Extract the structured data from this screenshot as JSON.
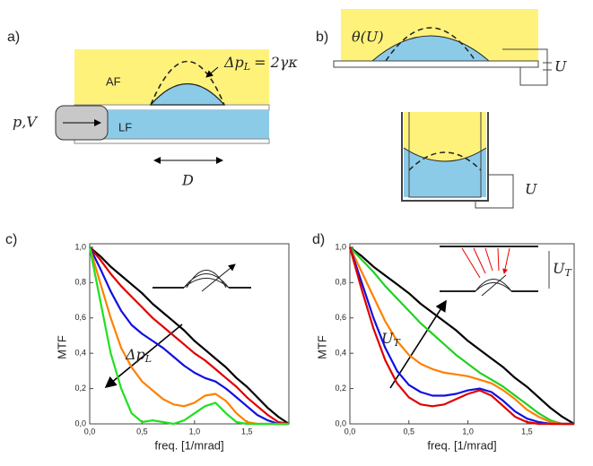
{
  "diagrams": {
    "a": {
      "label": "a)",
      "af": "AF",
      "lf": "LF",
      "pv": "p,V",
      "dp": "Δp",
      "dp_sub": "L",
      "dp_eq": "= 2γκ",
      "d": "D"
    },
    "b": {
      "label": "b)",
      "theta": "θ(U)",
      "u1": "U",
      "u2": "U"
    }
  },
  "chart_data": [
    {
      "type": "line",
      "panel": "c)",
      "xlabel": "freq. [1/mrad]",
      "ylabel": "MTF",
      "annotation": "Δp",
      "annotation_sub": "L",
      "x": [
        0,
        0.1,
        0.2,
        0.3,
        0.4,
        0.5,
        0.6,
        0.7,
        0.8,
        0.9,
        1.0,
        1.1,
        1.2,
        1.3,
        1.4,
        1.5,
        1.6,
        1.7,
        1.8,
        1.9
      ],
      "xlim": [
        0,
        1.9
      ],
      "ylim": [
        0,
        1.02
      ],
      "xticks": [
        {
          "value": 0,
          "label": "0,0"
        },
        {
          "value": 0.5,
          "label": "0,5"
        },
        {
          "value": 1,
          "label": "1,0"
        },
        {
          "value": 1.5,
          "label": "1,5"
        }
      ],
      "yticks": [
        {
          "value": 0,
          "label": "0,0"
        },
        {
          "value": 0.2,
          "label": "0,2"
        },
        {
          "value": 0.4,
          "label": "0,4"
        },
        {
          "value": 0.6,
          "label": "0,6"
        },
        {
          "value": 0.8,
          "label": "0,8"
        },
        {
          "value": 1,
          "label": "1,0"
        }
      ],
      "series": [
        {
          "color": "#000000",
          "values": [
            1,
            0.95,
            0.89,
            0.84,
            0.79,
            0.74,
            0.68,
            0.63,
            0.58,
            0.53,
            0.47,
            0.42,
            0.37,
            0.32,
            0.26,
            0.21,
            0.15,
            0.09,
            0.04,
            0
          ]
        },
        {
          "color": "#e00000",
          "values": [
            1,
            0.93,
            0.85,
            0.78,
            0.72,
            0.66,
            0.6,
            0.55,
            0.5,
            0.45,
            0.4,
            0.36,
            0.31,
            0.26,
            0.21,
            0.15,
            0.1,
            0.05,
            0.01,
            0
          ]
        },
        {
          "color": "#1010e0",
          "values": [
            1,
            0.88,
            0.75,
            0.64,
            0.56,
            0.51,
            0.47,
            0.43,
            0.38,
            0.33,
            0.29,
            0.26,
            0.24,
            0.2,
            0.15,
            0.1,
            0.05,
            0.02,
            0,
            0
          ]
        },
        {
          "color": "#ff8000",
          "values": [
            1,
            0.8,
            0.6,
            0.43,
            0.32,
            0.24,
            0.19,
            0.14,
            0.11,
            0.1,
            0.12,
            0.16,
            0.17,
            0.13,
            0.06,
            0.01,
            0,
            0,
            0,
            0
          ]
        },
        {
          "color": "#20e020",
          "values": [
            1,
            0.7,
            0.4,
            0.2,
            0.06,
            0.01,
            0.02,
            0.01,
            0,
            0.02,
            0.06,
            0.1,
            0.12,
            0.06,
            0.01,
            0,
            0,
            0,
            0,
            0
          ]
        }
      ]
    },
    {
      "type": "line",
      "panel": "d)",
      "xlabel": "freq. [1/mrad]",
      "ylabel": "MTF",
      "annotation": "U",
      "annotation_sub": "T",
      "x": [
        0,
        0.1,
        0.2,
        0.3,
        0.4,
        0.5,
        0.6,
        0.7,
        0.8,
        0.9,
        1.0,
        1.1,
        1.2,
        1.3,
        1.4,
        1.5,
        1.6,
        1.7,
        1.8,
        1.9
      ],
      "xlim": [
        0,
        1.9
      ],
      "ylim": [
        0,
        1.02
      ],
      "xticks": [
        {
          "value": 0,
          "label": "0,0"
        },
        {
          "value": 0.5,
          "label": "0,5"
        },
        {
          "value": 1,
          "label": "1,0"
        },
        {
          "value": 1.5,
          "label": "1,5"
        }
      ],
      "yticks": [
        {
          "value": 0,
          "label": "0,0"
        },
        {
          "value": 0.2,
          "label": "0,2"
        },
        {
          "value": 0.4,
          "label": "0,4"
        },
        {
          "value": 0.6,
          "label": "0,6"
        },
        {
          "value": 0.8,
          "label": "0,8"
        },
        {
          "value": 1,
          "label": "1,0"
        }
      ],
      "series": [
        {
          "color": "#000000",
          "values": [
            1,
            0.95,
            0.89,
            0.84,
            0.79,
            0.74,
            0.68,
            0.63,
            0.58,
            0.53,
            0.47,
            0.42,
            0.37,
            0.32,
            0.26,
            0.21,
            0.15,
            0.09,
            0.04,
            0
          ]
        },
        {
          "color": "#20d020",
          "values": [
            1,
            0.93,
            0.86,
            0.78,
            0.71,
            0.64,
            0.57,
            0.51,
            0.45,
            0.39,
            0.34,
            0.29,
            0.25,
            0.21,
            0.16,
            0.11,
            0.06,
            0.02,
            0,
            0
          ]
        },
        {
          "color": "#ff8000",
          "values": [
            1,
            0.86,
            0.72,
            0.58,
            0.47,
            0.39,
            0.34,
            0.31,
            0.29,
            0.28,
            0.27,
            0.25,
            0.23,
            0.19,
            0.14,
            0.08,
            0.04,
            0.01,
            0,
            0
          ]
        },
        {
          "color": "#1010e0",
          "values": [
            1,
            0.8,
            0.6,
            0.43,
            0.3,
            0.22,
            0.18,
            0.16,
            0.16,
            0.17,
            0.19,
            0.2,
            0.18,
            0.13,
            0.07,
            0.03,
            0.01,
            0,
            0,
            0
          ]
        },
        {
          "color": "#e00000",
          "values": [
            1,
            0.76,
            0.54,
            0.36,
            0.23,
            0.15,
            0.11,
            0.1,
            0.11,
            0.14,
            0.17,
            0.19,
            0.16,
            0.1,
            0.04,
            0.01,
            0,
            0,
            0,
            0
          ]
        }
      ]
    }
  ]
}
